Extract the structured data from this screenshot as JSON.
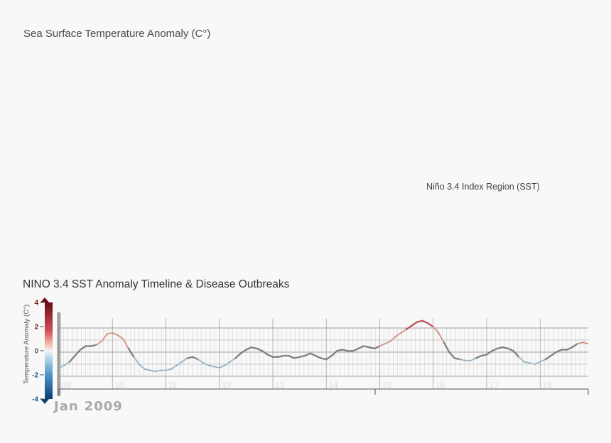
{
  "map_panel": {
    "title": "Sea Surface Temperature Anomaly (C°)",
    "region_label": "Niño 3.4 Index Region (SST)"
  },
  "timeline": {
    "title": "NINO 3.4 SST Anomaly Timeline & Disease Outbreaks",
    "current_month": "Jan",
    "current_year": "2009"
  },
  "colors": {
    "warm_dark": "#6b0a14",
    "warm": "#d4525a",
    "warm_light": "#f2b9a8",
    "neutral": "#f3f3f3",
    "cool_light": "#bcd9ea",
    "cool": "#4d93c7",
    "cool_dark": "#0c3f78",
    "grid": "#999999"
  },
  "chart_data": {
    "type": "line",
    "title": "NINO 3.4 SST Anomaly Timeline & Disease Outbreaks",
    "ylabel": "Temperature Anomaly (C°)",
    "xlabel": "",
    "ylim": [
      -4,
      4
    ],
    "y_ticks": [
      4,
      2,
      0,
      -2,
      -4
    ],
    "x_tick_labels": [
      "09",
      "10",
      "11",
      "12",
      "13",
      "14",
      "15",
      "16",
      "17",
      "18"
    ],
    "x_range": [
      2009.0,
      2018.9
    ],
    "grid": true,
    "series": [
      {
        "x": [
          2009.0,
          2009.1,
          2009.2,
          2009.3,
          2009.4,
          2009.5,
          2009.6,
          2009.7,
          2009.8,
          2009.9,
          2010.0,
          2010.1,
          2010.2,
          2010.3,
          2010.4,
          2010.5,
          2010.6,
          2010.7,
          2010.8,
          2010.9,
          2011.0,
          2011.1,
          2011.2,
          2011.3,
          2011.4,
          2011.5,
          2011.6,
          2011.7,
          2011.8,
          2011.9,
          2012.0,
          2012.1,
          2012.2,
          2012.3,
          2012.4,
          2012.5,
          2012.6,
          2012.7,
          2012.8,
          2012.9,
          2013.0,
          2013.1,
          2013.2,
          2013.3,
          2013.4,
          2013.5,
          2013.6,
          2013.7,
          2013.8,
          2013.9,
          2014.0,
          2014.1,
          2014.2,
          2014.3,
          2014.4,
          2014.5,
          2014.6,
          2014.7,
          2014.8,
          2014.9,
          2015.0,
          2015.1,
          2015.2,
          2015.3,
          2015.4,
          2015.5,
          2015.6,
          2015.7,
          2015.8,
          2015.9,
          2016.0,
          2016.1,
          2016.2,
          2016.3,
          2016.4,
          2016.5,
          2016.6,
          2016.7,
          2016.8,
          2016.9,
          2017.0,
          2017.1,
          2017.2,
          2017.3,
          2017.4,
          2017.5,
          2017.6,
          2017.7,
          2017.8,
          2017.9,
          2018.0,
          2018.1,
          2018.2,
          2018.3,
          2018.4,
          2018.5,
          2018.6,
          2018.7,
          2018.8,
          2018.9
        ],
        "values": [
          -1.3,
          -1.1,
          -0.8,
          -0.3,
          0.2,
          0.5,
          0.5,
          0.6,
          0.9,
          1.5,
          1.6,
          1.4,
          1.1,
          0.3,
          -0.4,
          -1.0,
          -1.4,
          -1.5,
          -1.6,
          -1.5,
          -1.5,
          -1.4,
          -1.1,
          -0.8,
          -0.5,
          -0.4,
          -0.6,
          -0.9,
          -1.1,
          -1.2,
          -1.3,
          -1.1,
          -0.8,
          -0.5,
          -0.1,
          0.2,
          0.4,
          0.3,
          0.1,
          -0.2,
          -0.4,
          -0.4,
          -0.3,
          -0.3,
          -0.5,
          -0.4,
          -0.3,
          -0.1,
          -0.3,
          -0.5,
          -0.6,
          -0.3,
          0.1,
          0.2,
          0.1,
          0.1,
          0.3,
          0.5,
          0.4,
          0.3,
          0.5,
          0.7,
          0.9,
          1.3,
          1.6,
          1.9,
          2.2,
          2.5,
          2.6,
          2.4,
          2.1,
          1.6,
          0.8,
          0.0,
          -0.5,
          -0.6,
          -0.7,
          -0.7,
          -0.5,
          -0.3,
          -0.2,
          0.1,
          0.3,
          0.4,
          0.3,
          0.1,
          -0.4,
          -0.8,
          -0.9,
          -1.0,
          -0.8,
          -0.6,
          -0.3,
          0.0,
          0.2,
          0.2,
          0.4,
          0.7,
          0.8,
          0.7
        ]
      }
    ]
  }
}
